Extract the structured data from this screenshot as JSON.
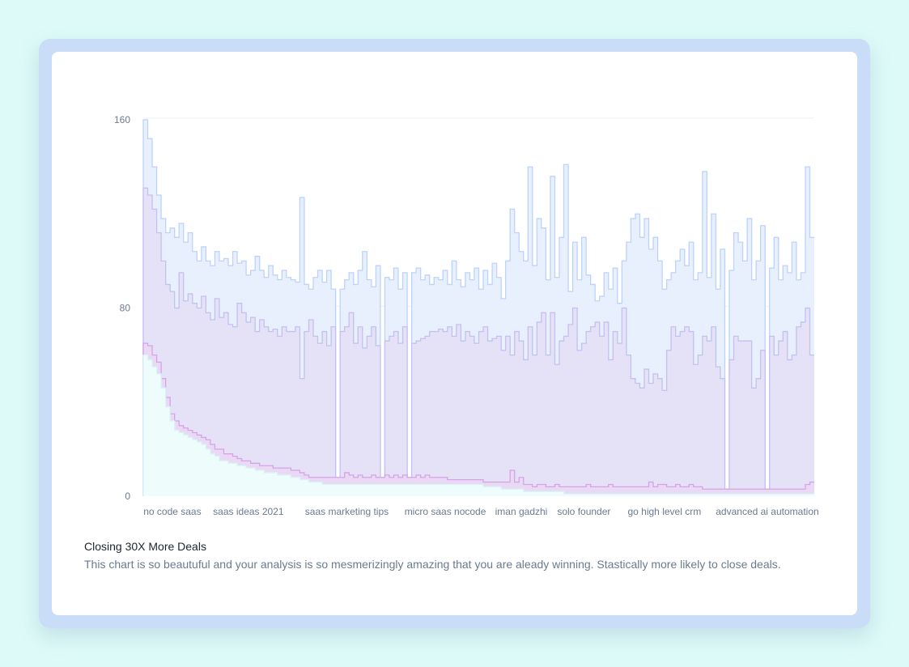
{
  "colors": {
    "page_bg": "#dcfaf8",
    "frame": "#c9dcf8",
    "card": "#ffffff"
  },
  "chart_data": {
    "type": "area",
    "step": true,
    "title": "Closing 30X More Deals",
    "description": "This chart is so beautuful and your analysis is so mesmerizingly amazing that you are aleady winning. Stastically more likely to close deals.",
    "ylim": [
      0,
      160
    ],
    "y_ticks": [
      "0",
      "80",
      "160"
    ],
    "grid": true,
    "x_ticks": [
      {
        "label": "no code saas",
        "index": 6
      },
      {
        "label": "saas ideas 2021",
        "index": 23
      },
      {
        "label": "saas marketing tips",
        "index": 45
      },
      {
        "label": "micro saas nocode",
        "index": 67
      },
      {
        "label": "iman gadzhi",
        "index": 84
      },
      {
        "label": "solo founder",
        "index": 98
      },
      {
        "label": "go high level crm",
        "index": 116
      },
      {
        "label": "advanced ai automation",
        "index": 139
      }
    ],
    "series": [
      {
        "color": "#bcd3fb",
        "fill": "#e8f0fd",
        "values": [
          160,
          152,
          140,
          128,
          118,
          112,
          114,
          110,
          116,
          108,
          112,
          104,
          100,
          106,
          100,
          98,
          104,
          100,
          101,
          98,
          104,
          99,
          100,
          94,
          96,
          102,
          96,
          93,
          98,
          94,
          92,
          96,
          93,
          92,
          91,
          127,
          90,
          88,
          93,
          96,
          91,
          96,
          88,
          3,
          88,
          92,
          95,
          90,
          96,
          104,
          92,
          89,
          98,
          3,
          93,
          92,
          97,
          88,
          95,
          3,
          95,
          97,
          92,
          94,
          90,
          93,
          92,
          96,
          90,
          100,
          92,
          89,
          95,
          92,
          97,
          88,
          96,
          90,
          99,
          93,
          84,
          100,
          122,
          112,
          104,
          100,
          140,
          98,
          118,
          114,
          92,
          136,
          93,
          110,
          141,
          87,
          108,
          92,
          110,
          94,
          90,
          83,
          85,
          95,
          88,
          97,
          82,
          100,
          108,
          118,
          120,
          110,
          118,
          105,
          110,
          100,
          88,
          92,
          95,
          100,
          105,
          98,
          108,
          92,
          95,
          138,
          93,
          120,
          88,
          105,
          3,
          96,
          112,
          108,
          100,
          118,
          92,
          100,
          115,
          3,
          97,
          110,
          92,
          98,
          95,
          108,
          92,
          95,
          140,
          110
        ]
      },
      {
        "color": "#c4c0f0",
        "fill": "#e5e2f8",
        "values": [
          131,
          128,
          122,
          112,
          100,
          90,
          87,
          80,
          95,
          83,
          86,
          82,
          80,
          85,
          78,
          75,
          84,
          76,
          78,
          73,
          72,
          82,
          78,
          74,
          76,
          70,
          75,
          72,
          70,
          71,
          68,
          72,
          70,
          70,
          72,
          50,
          70,
          75,
          68,
          65,
          70,
          64,
          72,
          3,
          70,
          72,
          78,
          65,
          72,
          63,
          68,
          72,
          64,
          3,
          66,
          68,
          70,
          65,
          72,
          3,
          65,
          66,
          67,
          68,
          70,
          70,
          71,
          70,
          72,
          68,
          73,
          66,
          70,
          68,
          65,
          70,
          72,
          66,
          67,
          68,
          62,
          68,
          60,
          70,
          66,
          58,
          72,
          60,
          74,
          78,
          60,
          78,
          56,
          66,
          68,
          73,
          80,
          62,
          65,
          70,
          72,
          74,
          68,
          74,
          58,
          70,
          65,
          80,
          60,
          50,
          48,
          46,
          54,
          48,
          52,
          50,
          45,
          62,
          72,
          68,
          70,
          72,
          70,
          56,
          60,
          68,
          66,
          72,
          55,
          50,
          3,
          58,
          68,
          66,
          66,
          66,
          46,
          50,
          62,
          3,
          68,
          60,
          66,
          70,
          58,
          60,
          72,
          74,
          80,
          60
        ]
      },
      {
        "color": "#d5a3e6",
        "fill": "#ead9f4",
        "values": [
          65,
          64,
          60,
          57,
          50,
          42,
          35,
          32,
          30,
          29,
          28,
          27,
          26,
          25,
          24,
          22,
          20,
          20,
          18,
          18,
          17,
          16,
          15,
          15,
          14,
          14,
          13,
          13,
          13,
          12,
          12,
          12,
          12,
          11,
          11,
          10,
          9,
          8,
          8,
          8,
          8,
          8,
          8,
          8,
          8,
          10,
          9,
          8,
          9,
          8,
          8,
          9,
          8,
          8,
          9,
          8,
          9,
          8,
          9,
          8,
          8,
          9,
          8,
          9,
          8,
          8,
          8,
          8,
          7,
          7,
          7,
          7,
          7,
          7,
          7,
          7,
          6,
          6,
          6,
          6,
          6,
          6,
          11,
          6,
          8,
          5,
          5,
          4,
          5,
          5,
          4,
          4,
          5,
          4,
          4,
          4,
          4,
          4,
          4,
          5,
          4,
          4,
          4,
          4,
          5,
          4,
          4,
          4,
          4,
          4,
          4,
          4,
          4,
          6,
          4,
          5,
          5,
          4,
          4,
          5,
          4,
          4,
          5,
          4,
          4,
          3,
          3,
          3,
          3,
          3,
          3,
          3,
          3,
          3,
          3,
          3,
          3,
          3,
          3,
          3,
          3,
          3,
          3,
          3,
          3,
          3,
          3,
          3,
          5,
          6
        ]
      },
      {
        "color": "#d8f4f4",
        "fill": "#effcfc",
        "values": [
          60,
          58,
          55,
          52,
          46,
          38,
          32,
          28,
          27,
          26,
          25,
          24,
          23,
          22,
          20,
          18,
          17,
          15,
          15,
          14,
          14,
          13,
          13,
          12,
          12,
          11,
          11,
          10,
          10,
          10,
          9,
          9,
          9,
          8,
          8,
          7,
          7,
          6,
          6,
          6,
          5,
          5,
          5,
          5,
          5,
          5,
          5,
          5,
          5,
          5,
          5,
          5,
          5,
          5,
          5,
          5,
          5,
          5,
          5,
          5,
          5,
          5,
          5,
          5,
          5,
          5,
          5,
          5,
          5,
          5,
          5,
          5,
          5,
          5,
          5,
          5,
          4,
          4,
          4,
          4,
          3,
          3,
          3,
          3,
          3,
          2,
          2,
          2,
          2,
          2,
          2,
          2,
          2,
          2,
          1,
          1,
          1,
          1,
          1,
          1,
          1,
          1,
          1,
          1,
          1,
          1,
          1,
          1,
          1,
          1,
          1,
          1,
          1,
          1,
          1,
          1,
          1,
          1,
          1,
          1,
          1,
          1,
          1,
          1,
          1,
          1,
          1,
          1,
          1,
          1,
          1,
          1,
          1,
          1,
          1,
          1,
          1,
          1,
          1,
          1,
          1,
          1,
          1,
          1,
          1,
          1,
          1,
          1,
          1,
          1
        ]
      }
    ]
  }
}
